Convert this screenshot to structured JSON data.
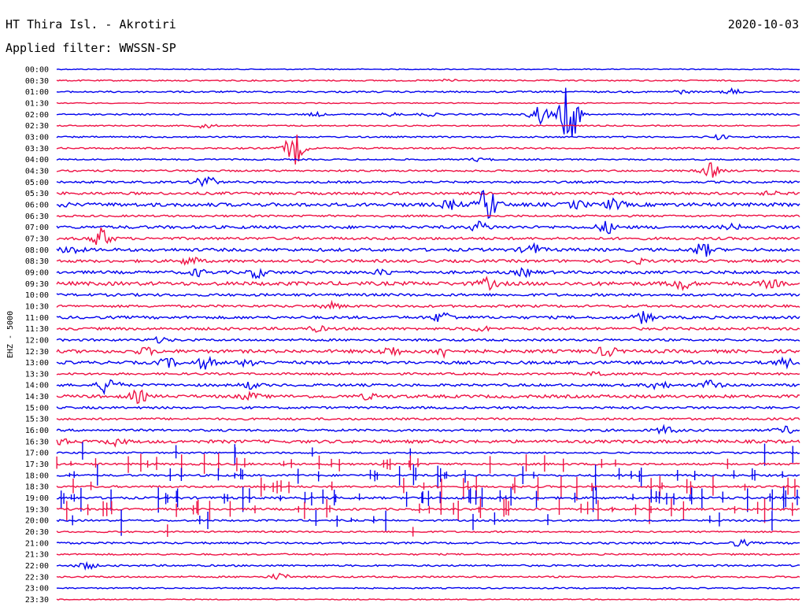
{
  "header": {
    "station": "HT Thira Isl. - Akrotiri",
    "date": "2020-10-03",
    "filter": "Applied filter: WWSSN-SP"
  },
  "chart_data": {
    "type": "line",
    "title": "HT Thira Isl. - Akrotiri",
    "ylabel": "EHZ - 5000",
    "colors": {
      "even_row": "#0000ee",
      "odd_row": "#ee1144"
    },
    "y_tick_labels": [
      "00:00",
      "00:30",
      "01:00",
      "01:30",
      "02:00",
      "02:30",
      "03:00",
      "03:30",
      "04:00",
      "04:30",
      "05:00",
      "05:30",
      "06:00",
      "06:30",
      "07:00",
      "07:30",
      "08:00",
      "08:30",
      "09:00",
      "09:30",
      "10:00",
      "10:30",
      "11:00",
      "11:30",
      "12:00",
      "12:30",
      "13:00",
      "13:30",
      "14:00",
      "14:30",
      "15:00",
      "15:30",
      "16:00",
      "16:30",
      "17:00",
      "17:30",
      "18:00",
      "18:30",
      "19:00",
      "19:30",
      "20:00",
      "20:30",
      "21:00",
      "21:30",
      "22:00",
      "22:30",
      "23:00",
      "23:30"
    ],
    "rows": [
      {
        "label": "00:00",
        "noise": 0.6,
        "events": []
      },
      {
        "label": "00:30",
        "noise": 0.8,
        "events": [
          [
            0.53,
            2
          ]
        ]
      },
      {
        "label": "01:00",
        "noise": 1.0,
        "events": [
          [
            0.84,
            2
          ],
          [
            0.91,
            3
          ]
        ]
      },
      {
        "label": "01:30",
        "noise": 0.6,
        "events": []
      },
      {
        "label": "02:00",
        "noise": 0.9,
        "events": [
          [
            0.35,
            2
          ],
          [
            0.45,
            2
          ],
          [
            0.5,
            2
          ],
          [
            0.65,
            12
          ],
          [
            0.69,
            40
          ]
        ]
      },
      {
        "label": "02:30",
        "noise": 0.8,
        "events": [
          [
            0.2,
            3
          ]
        ]
      },
      {
        "label": "03:00",
        "noise": 0.9,
        "events": [
          [
            0.89,
            3
          ]
        ]
      },
      {
        "label": "03:30",
        "noise": 1.0,
        "events": [
          [
            0.32,
            20
          ]
        ]
      },
      {
        "label": "04:00",
        "noise": 0.9,
        "events": [
          [
            0.57,
            2
          ]
        ]
      },
      {
        "label": "04:30",
        "noise": 1.1,
        "events": [
          [
            0.88,
            9
          ]
        ]
      },
      {
        "label": "05:00",
        "noise": 1.3,
        "events": [
          [
            0.2,
            10
          ]
        ]
      },
      {
        "label": "05:30",
        "noise": 1.6,
        "events": [
          [
            0.96,
            2
          ]
        ]
      },
      {
        "label": "06:00",
        "noise": 2.2,
        "events": [
          [
            0.0,
            3
          ],
          [
            0.53,
            5
          ],
          [
            0.58,
            22
          ],
          [
            0.7,
            4
          ],
          [
            0.75,
            6
          ]
        ]
      },
      {
        "label": "06:30",
        "noise": 1.2,
        "events": []
      },
      {
        "label": "07:00",
        "noise": 1.8,
        "events": [
          [
            0.57,
            6
          ],
          [
            0.74,
            7
          ],
          [
            0.91,
            3
          ]
        ]
      },
      {
        "label": "07:30",
        "noise": 1.6,
        "events": [
          [
            0.06,
            13
          ]
        ]
      },
      {
        "label": "08:00",
        "noise": 1.9,
        "events": [
          [
            0.02,
            5
          ],
          [
            0.64,
            7
          ],
          [
            0.87,
            8
          ]
        ]
      },
      {
        "label": "08:30",
        "noise": 1.7,
        "events": [
          [
            0.18,
            5
          ],
          [
            0.78,
            3
          ]
        ]
      },
      {
        "label": "09:00",
        "noise": 1.8,
        "events": [
          [
            0.19,
            4
          ],
          [
            0.27,
            6
          ],
          [
            0.44,
            3
          ],
          [
            0.63,
            4
          ]
        ]
      },
      {
        "label": "09:30",
        "noise": 2.3,
        "events": [
          [
            0.58,
            6
          ],
          [
            0.84,
            7
          ],
          [
            0.96,
            4
          ]
        ]
      },
      {
        "label": "10:00",
        "noise": 1.6,
        "events": []
      },
      {
        "label": "10:30",
        "noise": 1.5,
        "events": [
          [
            0.37,
            4
          ]
        ]
      },
      {
        "label": "11:00",
        "noise": 1.7,
        "events": [
          [
            0.52,
            7
          ],
          [
            0.79,
            7
          ]
        ]
      },
      {
        "label": "11:30",
        "noise": 1.6,
        "events": [
          [
            0.35,
            3
          ],
          [
            0.57,
            3
          ]
        ]
      },
      {
        "label": "12:00",
        "noise": 1.4,
        "events": [
          [
            0.14,
            3
          ]
        ]
      },
      {
        "label": "12:30",
        "noise": 2.0,
        "events": [
          [
            0.12,
            4
          ],
          [
            0.45,
            6
          ],
          [
            0.52,
            6
          ],
          [
            0.74,
            6
          ]
        ]
      },
      {
        "label": "13:00",
        "noise": 1.9,
        "events": [
          [
            0.15,
            5
          ],
          [
            0.2,
            7
          ],
          [
            0.26,
            5
          ],
          [
            0.98,
            5
          ]
        ]
      },
      {
        "label": "13:30",
        "noise": 1.3,
        "events": [
          [
            0.73,
            3
          ]
        ]
      },
      {
        "label": "14:00",
        "noise": 1.6,
        "events": [
          [
            0.07,
            12
          ],
          [
            0.26,
            4
          ],
          [
            0.81,
            5
          ],
          [
            0.88,
            6
          ]
        ]
      },
      {
        "label": "14:30",
        "noise": 1.9,
        "events": [
          [
            0.11,
            7
          ],
          [
            0.26,
            4
          ],
          [
            0.42,
            3
          ]
        ]
      },
      {
        "label": "15:00",
        "noise": 1.4,
        "events": []
      },
      {
        "label": "15:30",
        "noise": 1.3,
        "events": []
      },
      {
        "label": "16:00",
        "noise": 1.4,
        "events": [
          [
            0.82,
            5
          ],
          [
            0.98,
            4
          ]
        ]
      },
      {
        "label": "16:30",
        "noise": 1.9,
        "events": [
          [
            0.0,
            5
          ],
          [
            0.08,
            4
          ]
        ]
      },
      {
        "label": "17:00",
        "noise": 1.0,
        "events": [],
        "spikes": 8
      },
      {
        "label": "17:30",
        "noise": 1.2,
        "events": [],
        "spikes": 30
      },
      {
        "label": "18:00",
        "noise": 1.2,
        "events": [],
        "spikes": 35
      },
      {
        "label": "18:30",
        "noise": 1.2,
        "events": [],
        "spikes": 30
      },
      {
        "label": "19:00",
        "noise": 1.4,
        "events": [],
        "spikes": 55
      },
      {
        "label": "19:30",
        "noise": 1.3,
        "events": [],
        "spikes": 40
      },
      {
        "label": "20:00",
        "noise": 1.1,
        "events": [],
        "spikes": 15
      },
      {
        "label": "20:30",
        "noise": 1.0,
        "events": [],
        "spikes": 2
      },
      {
        "label": "21:00",
        "noise": 1.2,
        "events": [
          [
            0.92,
            4
          ]
        ]
      },
      {
        "label": "21:30",
        "noise": 1.0,
        "events": []
      },
      {
        "label": "22:00",
        "noise": 1.1,
        "events": [
          [
            0.04,
            4
          ]
        ]
      },
      {
        "label": "22:30",
        "noise": 1.0,
        "events": [
          [
            0.3,
            4
          ]
        ]
      },
      {
        "label": "23:00",
        "noise": 0.8,
        "events": []
      },
      {
        "label": "23:30",
        "noise": 0.6,
        "events": []
      }
    ]
  }
}
